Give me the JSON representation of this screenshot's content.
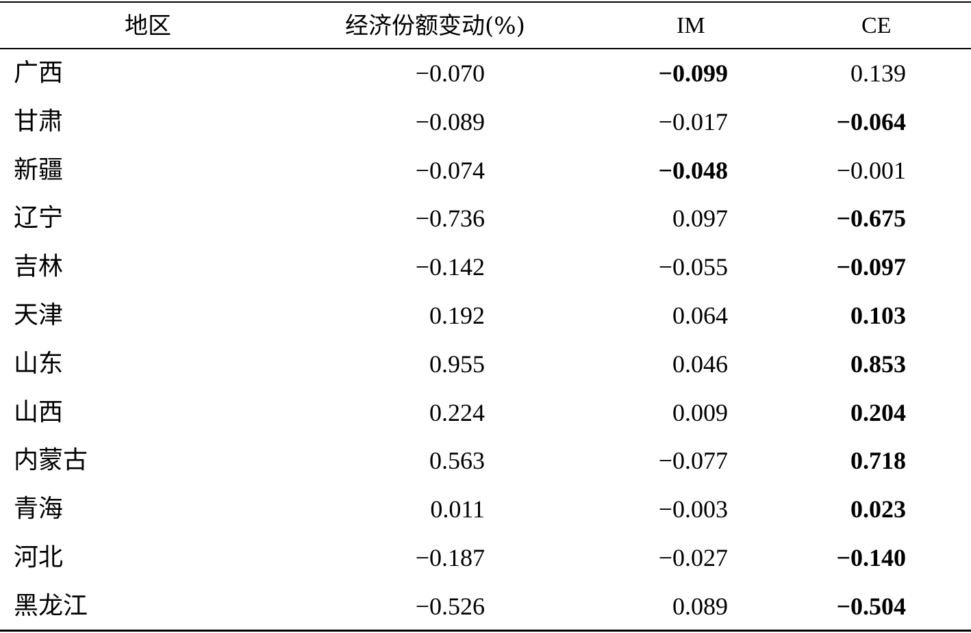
{
  "table": {
    "headers": {
      "region": "地区",
      "change": "经济份额变动(%)",
      "im": "IM",
      "ce": "CE"
    },
    "rows": [
      {
        "region": "广西",
        "change": "−0.070",
        "im": "−0.099",
        "ce": "0.139",
        "im_bold": true,
        "ce_bold": false
      },
      {
        "region": "甘肃",
        "change": "−0.089",
        "im": "−0.017",
        "ce": "−0.064",
        "im_bold": false,
        "ce_bold": true
      },
      {
        "region": "新疆",
        "change": "−0.074",
        "im": "−0.048",
        "ce": "−0.001",
        "im_bold": true,
        "ce_bold": false
      },
      {
        "region": "辽宁",
        "change": "−0.736",
        "im": "0.097",
        "ce": "−0.675",
        "im_bold": false,
        "ce_bold": true
      },
      {
        "region": "吉林",
        "change": "−0.142",
        "im": "−0.055",
        "ce": "−0.097",
        "im_bold": false,
        "ce_bold": true
      },
      {
        "region": "天津",
        "change": "0.192",
        "im": "0.064",
        "ce": "0.103",
        "im_bold": false,
        "ce_bold": true
      },
      {
        "region": "山东",
        "change": "0.955",
        "im": "0.046",
        "ce": "0.853",
        "im_bold": false,
        "ce_bold": true
      },
      {
        "region": "山西",
        "change": "0.224",
        "im": "0.009",
        "ce": "0.204",
        "im_bold": false,
        "ce_bold": true
      },
      {
        "region": "内蒙古",
        "change": "0.563",
        "im": "−0.077",
        "ce": "0.718",
        "im_bold": false,
        "ce_bold": true
      },
      {
        "region": "青海",
        "change": "0.011",
        "im": "−0.003",
        "ce": "0.023",
        "im_bold": false,
        "ce_bold": true
      },
      {
        "region": "河北",
        "change": "−0.187",
        "im": "−0.027",
        "ce": "−0.140",
        "im_bold": false,
        "ce_bold": true
      },
      {
        "region": "黑龙江",
        "change": "−0.526",
        "im": "0.089",
        "ce": "−0.504",
        "im_bold": false,
        "ce_bold": true
      }
    ]
  }
}
